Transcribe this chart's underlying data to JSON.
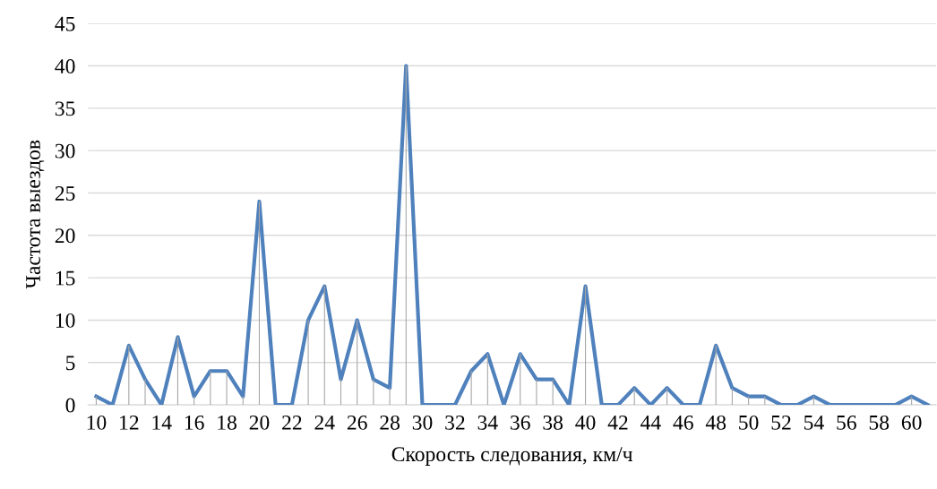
{
  "chart_data": {
    "type": "line",
    "xlabel": "Скорость следования, км/ч",
    "ylabel": "Частота выездов",
    "categories": [
      "10",
      null,
      "12",
      null,
      "14",
      null,
      "16",
      null,
      "18",
      null,
      "20",
      null,
      "22",
      null,
      "24",
      null,
      "26",
      null,
      "28",
      null,
      "30",
      null,
      "32",
      null,
      "34",
      null,
      "36",
      null,
      "38",
      null,
      "40",
      null,
      "42",
      null,
      "44",
      null,
      "46",
      null,
      "48",
      null,
      "50",
      null,
      "52",
      null,
      "54",
      null,
      "56",
      null,
      "58",
      null,
      "60",
      null
    ],
    "series": [
      {
        "type": "bar",
        "color": "#a6a6a6",
        "values": [
          1,
          0,
          7,
          3,
          0,
          8,
          1,
          4,
          4,
          1,
          24,
          0,
          0,
          10,
          14,
          3,
          10,
          3,
          2,
          40,
          0,
          0,
          0,
          4,
          6,
          0,
          6,
          3,
          3,
          0,
          14,
          0,
          0,
          2,
          0,
          2,
          0,
          0,
          7,
          2,
          1,
          1,
          0,
          0,
          1,
          0,
          0,
          0,
          0,
          0,
          1,
          0
        ]
      },
      {
        "color": "#4f81bd",
        "values": [
          1,
          0,
          7,
          3,
          0,
          8,
          1,
          4,
          4,
          1,
          24,
          0,
          0,
          10,
          14,
          3,
          10,
          3,
          2,
          40,
          0,
          0,
          0,
          4,
          6,
          0,
          6,
          3,
          3,
          0,
          14,
          0,
          0,
          2,
          0,
          2,
          0,
          0,
          7,
          2,
          1,
          1,
          0,
          0,
          1,
          0,
          0,
          0,
          0,
          0,
          1,
          0
        ]
      }
    ],
    "ylim": [
      0,
      45
    ],
    "yticks": [
      0,
      5,
      10,
      15,
      20,
      25,
      30,
      35,
      40,
      45
    ],
    "grid": "y",
    "marker": "none",
    "line_style": "solid"
  }
}
